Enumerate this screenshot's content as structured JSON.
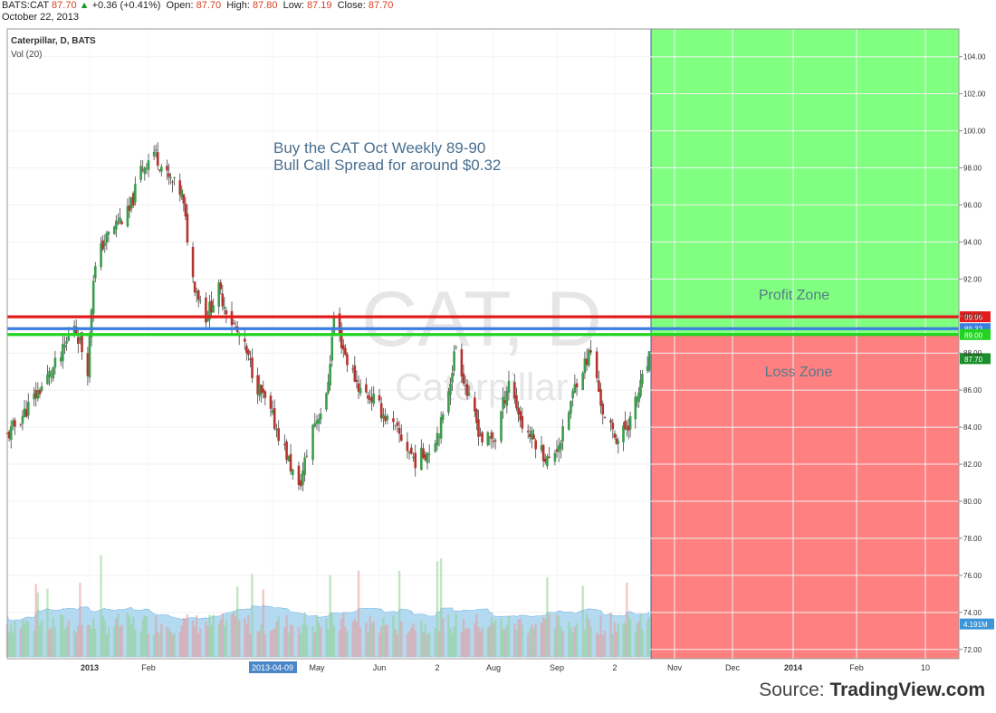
{
  "header": {
    "symbol": "BATS:CAT",
    "last": "87.70",
    "change": "+0.36 (+0.41%)",
    "open_label": "Open:",
    "open": "87.70",
    "high_label": "High:",
    "high": "87.80",
    "low_label": "Low:",
    "low": "87.19",
    "close_label": "Close:",
    "close": "87.70",
    "date": "October 22, 2013"
  },
  "legend": {
    "series": "Caterpillar, D, BATS",
    "volume": "Vol (20)"
  },
  "watermark": {
    "ticker": "CAT, D",
    "name": "Caterpillar"
  },
  "annotation": {
    "line1": "Buy the CAT Oct Weekly 89-90",
    "line2": "Bull Call Spread for around $0.32"
  },
  "zones": {
    "profit_label": "Profit Zone",
    "loss_label": "Loss Zone",
    "profit_color": "#80ff80",
    "loss_color": "#ff8080"
  },
  "source": {
    "prefix": "Source: ",
    "name": "TradingView.com"
  },
  "chart_data": {
    "type": "candlestick",
    "title": "Caterpillar, D, BATS",
    "y_axis": {
      "ticks": [
        "72.00",
        "74.00",
        "76.00",
        "78.00",
        "80.00",
        "82.00",
        "84.00",
        "86.00",
        "88.00",
        "90.00",
        "92.00",
        "94.00",
        "96.00",
        "98.00",
        "100.00",
        "102.00",
        "104.00"
      ],
      "ylim": [
        71.5,
        105.5
      ],
      "side": "right"
    },
    "x_axis": {
      "ticks": [
        {
          "label": "2013",
          "bold": true,
          "date": "2013-01-01"
        },
        {
          "label": "Feb",
          "bold": false,
          "date": "2013-02-01"
        },
        {
          "label": "2013-04-09",
          "bold": false,
          "highlight": true,
          "date": "2013-04-09"
        },
        {
          "label": "May",
          "bold": false,
          "date": "2013-05-01"
        },
        {
          "label": "Jun",
          "bold": false,
          "date": "2013-06-03"
        },
        {
          "label": "2",
          "bold": false,
          "date": "2013-07-02"
        },
        {
          "label": "Aug",
          "bold": false,
          "date": "2013-08-01"
        },
        {
          "label": "Sep",
          "bold": false,
          "date": "2013-09-03"
        },
        {
          "label": "2",
          "bold": false,
          "date": "2013-10-02"
        },
        {
          "label": "Nov",
          "bold": false,
          "date": "2013-11-01"
        },
        {
          "label": "Dec",
          "bold": false,
          "date": "2013-12-02"
        },
        {
          "label": "2014",
          "bold": true,
          "date": "2014-01-02"
        },
        {
          "label": "Feb",
          "bold": false,
          "date": "2014-02-03"
        },
        {
          "label": "10",
          "bold": false,
          "date": "2014-03-10"
        }
      ]
    },
    "price_lines": [
      {
        "value": 89.96,
        "label": "89.96",
        "color": "#e31b1b"
      },
      {
        "value": 89.32,
        "label": "89.32",
        "color": "#3c7de0"
      },
      {
        "value": 89.0,
        "label": "89.00",
        "color": "#21d421"
      },
      {
        "value": 87.7,
        "label": "87.70",
        "color": "#1b8f2b",
        "marker_only": true
      }
    ],
    "volume_badge": "4.191M",
    "last_date": "2013-10-22",
    "zone_split_price": 89.0,
    "close_path": [
      [
        "2012-11-19",
        83.5
      ],
      [
        "2012-11-28",
        84.8
      ],
      [
        "2012-12-07",
        86.2
      ],
      [
        "2012-12-17",
        87.8
      ],
      [
        "2012-12-24",
        89.6
      ],
      [
        "2012-12-31",
        87.2
      ],
      [
        "2013-01-03",
        92.2
      ],
      [
        "2013-01-08",
        93.9
      ],
      [
        "2013-01-15",
        95.0
      ],
      [
        "2013-01-22",
        95.6
      ],
      [
        "2013-01-28",
        97.9
      ],
      [
        "2013-02-04",
        98.9
      ],
      [
        "2013-02-11",
        97.5
      ],
      [
        "2013-02-19",
        96.6
      ],
      [
        "2013-02-25",
        92.0
      ],
      [
        "2013-03-04",
        90.0
      ],
      [
        "2013-03-11",
        91.4
      ],
      [
        "2013-03-18",
        89.7
      ],
      [
        "2013-03-25",
        88.2
      ],
      [
        "2013-04-01",
        86.2
      ],
      [
        "2013-04-09",
        84.5
      ],
      [
        "2013-04-16",
        82.5
      ],
      [
        "2013-04-22",
        80.6
      ],
      [
        "2013-04-29",
        84.1
      ],
      [
        "2013-05-06",
        85.5
      ],
      [
        "2013-05-10",
        89.9
      ],
      [
        "2013-05-17",
        87.6
      ],
      [
        "2013-05-24",
        86.0
      ],
      [
        "2013-05-31",
        85.5
      ],
      [
        "2013-06-07",
        84.4
      ],
      [
        "2013-06-14",
        83.4
      ],
      [
        "2013-06-21",
        82.2
      ],
      [
        "2013-06-28",
        82.8
      ],
      [
        "2013-07-05",
        84.4
      ],
      [
        "2013-07-12",
        88.4
      ],
      [
        "2013-07-19",
        85.4
      ],
      [
        "2013-07-26",
        83.3
      ],
      [
        "2013-08-02",
        83.4
      ],
      [
        "2013-08-09",
        86.6
      ],
      [
        "2013-08-16",
        84.1
      ],
      [
        "2013-08-23",
        83.2
      ],
      [
        "2013-08-30",
        82.1
      ],
      [
        "2013-09-06",
        83.6
      ],
      [
        "2013-09-13",
        86.6
      ],
      [
        "2013-09-20",
        88.1
      ],
      [
        "2013-09-27",
        84.3
      ],
      [
        "2013-10-04",
        83.3
      ],
      [
        "2013-10-11",
        84.4
      ],
      [
        "2013-10-18",
        86.5
      ],
      [
        "2013-10-22",
        87.7
      ]
    ]
  }
}
